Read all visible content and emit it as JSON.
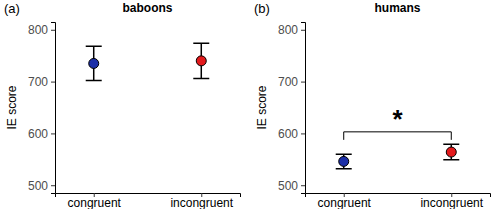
{
  "chart_data": [
    {
      "type": "point",
      "title": "baboons",
      "categories": [
        "congruent",
        "incongruent"
      ],
      "values": [
        735,
        740
      ],
      "errors": [
        33,
        34
      ],
      "colors": [
        "#1c2fa8",
        "#e31a1c"
      ],
      "ylabel": "IE score",
      "ylim": [
        485,
        815
      ],
      "yticks": [
        500,
        600,
        700,
        800
      ],
      "annotations": [
        {
          "text": "(a)"
        }
      ]
    },
    {
      "type": "point",
      "title": "humans",
      "categories": [
        "congruent",
        "incongruent"
      ],
      "values": [
        546,
        564
      ],
      "errors": [
        14,
        15
      ],
      "colors": [
        "#1c2fa8",
        "#e31a1c"
      ],
      "ylabel": "IE score",
      "ylim": [
        485,
        815
      ],
      "yticks": [
        500,
        600,
        700,
        800
      ],
      "annotations": [
        {
          "text": "(b)"
        },
        {
          "text": "*",
          "between": [
            0,
            1
          ],
          "y": 603
        }
      ]
    }
  ]
}
